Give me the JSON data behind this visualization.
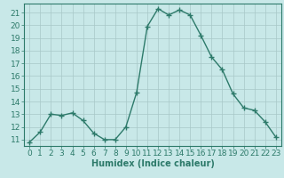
{
  "x": [
    0,
    1,
    2,
    3,
    4,
    5,
    6,
    7,
    8,
    9,
    10,
    11,
    12,
    13,
    14,
    15,
    16,
    17,
    18,
    19,
    20,
    21,
    22,
    23
  ],
  "y": [
    10.8,
    11.6,
    13.0,
    12.9,
    13.1,
    12.5,
    11.5,
    11.0,
    11.0,
    12.0,
    14.7,
    19.9,
    21.3,
    20.8,
    21.2,
    20.8,
    19.2,
    17.5,
    16.5,
    14.6,
    13.5,
    13.3,
    12.4,
    11.2
  ],
  "line_color": "#2d7a6a",
  "marker": "+",
  "marker_size": 4,
  "bg_color": "#c8e8e8",
  "grid_color": "#a8c8c8",
  "tick_color": "#2d7a6a",
  "xlabel": "Humidex (Indice chaleur)",
  "ylim": [
    10.5,
    21.7
  ],
  "xlim": [
    -0.5,
    23.5
  ],
  "yticks": [
    11,
    12,
    13,
    14,
    15,
    16,
    17,
    18,
    19,
    20,
    21
  ],
  "xticks": [
    0,
    1,
    2,
    3,
    4,
    5,
    6,
    7,
    8,
    9,
    10,
    11,
    12,
    13,
    14,
    15,
    16,
    17,
    18,
    19,
    20,
    21,
    22,
    23
  ],
  "xlabel_fontsize": 7,
  "tick_fontsize": 6.5,
  "line_width": 1.0
}
